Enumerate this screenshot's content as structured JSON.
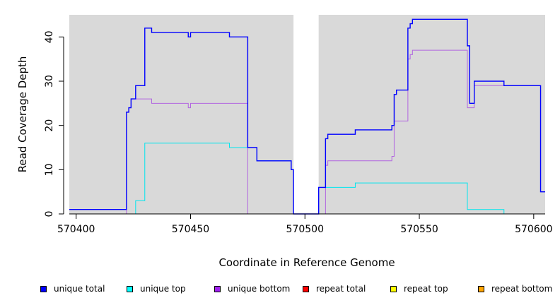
{
  "chart_data": {
    "type": "line",
    "xlabel": "Coordinate in Reference Genome",
    "ylabel": "Read Coverage Depth",
    "xlim": [
      570397,
      570605
    ],
    "ylim": [
      0,
      45
    ],
    "x_ticks": [
      570400,
      570450,
      570500,
      570550,
      570600
    ],
    "x_tick_labels": [
      "570400",
      "570450",
      "570500",
      "570550",
      "570600"
    ],
    "y_ticks": [
      0,
      10,
      20,
      30,
      40
    ],
    "y_tick_labels": [
      "0",
      "10",
      "20",
      "30",
      "40"
    ],
    "background_color": "#d9d9d9",
    "gap": [
      570495,
      570506
    ],
    "grid": false,
    "legend_position": "bottom",
    "series": [
      {
        "name": "unique total",
        "color": "#0000ff",
        "points": [
          [
            570397,
            1
          ],
          [
            570422,
            1
          ],
          [
            570422,
            23
          ],
          [
            570423,
            23
          ],
          [
            570423,
            24
          ],
          [
            570424,
            24
          ],
          [
            570424,
            26
          ],
          [
            570426,
            26
          ],
          [
            570426,
            29
          ],
          [
            570430,
            29
          ],
          [
            570430,
            42
          ],
          [
            570433,
            42
          ],
          [
            570433,
            41
          ],
          [
            570449,
            41
          ],
          [
            570449,
            40
          ],
          [
            570450,
            40
          ],
          [
            570450,
            41
          ],
          [
            570467,
            41
          ],
          [
            570467,
            40
          ],
          [
            570475,
            40
          ],
          [
            570475,
            15
          ],
          [
            570479,
            15
          ],
          [
            570479,
            12
          ],
          [
            570494,
            12
          ],
          [
            570494,
            10
          ],
          [
            570495,
            10
          ],
          [
            570495,
            0
          ],
          [
            570506,
            0
          ],
          [
            570506,
            6
          ],
          [
            570509,
            6
          ],
          [
            570509,
            17
          ],
          [
            570510,
            17
          ],
          [
            570510,
            18
          ],
          [
            570522,
            18
          ],
          [
            570522,
            19
          ],
          [
            570538,
            19
          ],
          [
            570538,
            20
          ],
          [
            570539,
            20
          ],
          [
            570539,
            27
          ],
          [
            570540,
            27
          ],
          [
            570540,
            28
          ],
          [
            570545,
            28
          ],
          [
            570545,
            42
          ],
          [
            570546,
            42
          ],
          [
            570546,
            43
          ],
          [
            570547,
            43
          ],
          [
            570547,
            44
          ],
          [
            570571,
            44
          ],
          [
            570571,
            38
          ],
          [
            570572,
            38
          ],
          [
            570572,
            25
          ],
          [
            570574,
            25
          ],
          [
            570574,
            30
          ],
          [
            570587,
            30
          ],
          [
            570587,
            29
          ],
          [
            570603,
            29
          ],
          [
            570603,
            5
          ],
          [
            570605,
            5
          ]
        ]
      },
      {
        "name": "unique top",
        "color": "#00e5ee",
        "points": [
          [
            570397,
            0
          ],
          [
            570426,
            0
          ],
          [
            570426,
            3
          ],
          [
            570430,
            3
          ],
          [
            570430,
            16
          ],
          [
            570467,
            16
          ],
          [
            570467,
            15
          ],
          [
            570479,
            15
          ],
          [
            570479,
            12
          ],
          [
            570494,
            12
          ],
          [
            570494,
            10
          ],
          [
            570495,
            10
          ],
          [
            570495,
            0
          ],
          [
            570506,
            0
          ],
          [
            570506,
            6
          ],
          [
            570522,
            6
          ],
          [
            570522,
            7
          ],
          [
            570571,
            7
          ],
          [
            570571,
            1
          ],
          [
            570587,
            1
          ],
          [
            570587,
            0
          ],
          [
            570605,
            0
          ]
        ]
      },
      {
        "name": "unique bottom",
        "color": "#b266e0",
        "points": [
          [
            570397,
            0
          ],
          [
            570422,
            0
          ],
          [
            570422,
            23
          ],
          [
            570423,
            23
          ],
          [
            570423,
            24
          ],
          [
            570424,
            24
          ],
          [
            570424,
            26
          ],
          [
            570433,
            26
          ],
          [
            570433,
            25
          ],
          [
            570449,
            25
          ],
          [
            570449,
            24
          ],
          [
            570450,
            24
          ],
          [
            570450,
            25
          ],
          [
            570475,
            25
          ],
          [
            570475,
            0
          ],
          [
            570509,
            0
          ],
          [
            570509,
            11
          ],
          [
            570510,
            11
          ],
          [
            570510,
            12
          ],
          [
            570538,
            12
          ],
          [
            570538,
            13
          ],
          [
            570539,
            13
          ],
          [
            570539,
            21
          ],
          [
            570545,
            21
          ],
          [
            570545,
            35
          ],
          [
            570546,
            35
          ],
          [
            570546,
            36
          ],
          [
            570547,
            36
          ],
          [
            570547,
            37
          ],
          [
            570571,
            37
          ],
          [
            570571,
            24
          ],
          [
            570574,
            24
          ],
          [
            570574,
            29
          ],
          [
            570603,
            29
          ],
          [
            570603,
            5
          ],
          [
            570605,
            5
          ]
        ]
      },
      {
        "name": "repeat total",
        "color": "#ff0000",
        "points": [
          [
            570397,
            0
          ],
          [
            570495,
            0
          ],
          [
            570506,
            0
          ],
          [
            570605,
            0
          ]
        ]
      },
      {
        "name": "repeat top",
        "color": "#ffff00",
        "points": [
          [
            570397,
            0
          ],
          [
            570495,
            0
          ],
          [
            570506,
            0
          ],
          [
            570605,
            0
          ]
        ]
      },
      {
        "name": "repeat bottom",
        "color": "#ffa500",
        "points": [
          [
            570397,
            0
          ],
          [
            570495,
            0
          ],
          [
            570506,
            0
          ],
          [
            570605,
            0
          ]
        ]
      }
    ]
  },
  "legend": {
    "items": [
      {
        "label": "unique total",
        "color": "#0000ff"
      },
      {
        "label": "unique top",
        "color": "#00ffff"
      },
      {
        "label": "unique bottom",
        "color": "#a020f0"
      },
      {
        "label": "repeat total",
        "color": "#ff0000"
      },
      {
        "label": "repeat top",
        "color": "#ffff00"
      },
      {
        "label": "repeat bottom",
        "color": "#ffa500"
      }
    ]
  }
}
